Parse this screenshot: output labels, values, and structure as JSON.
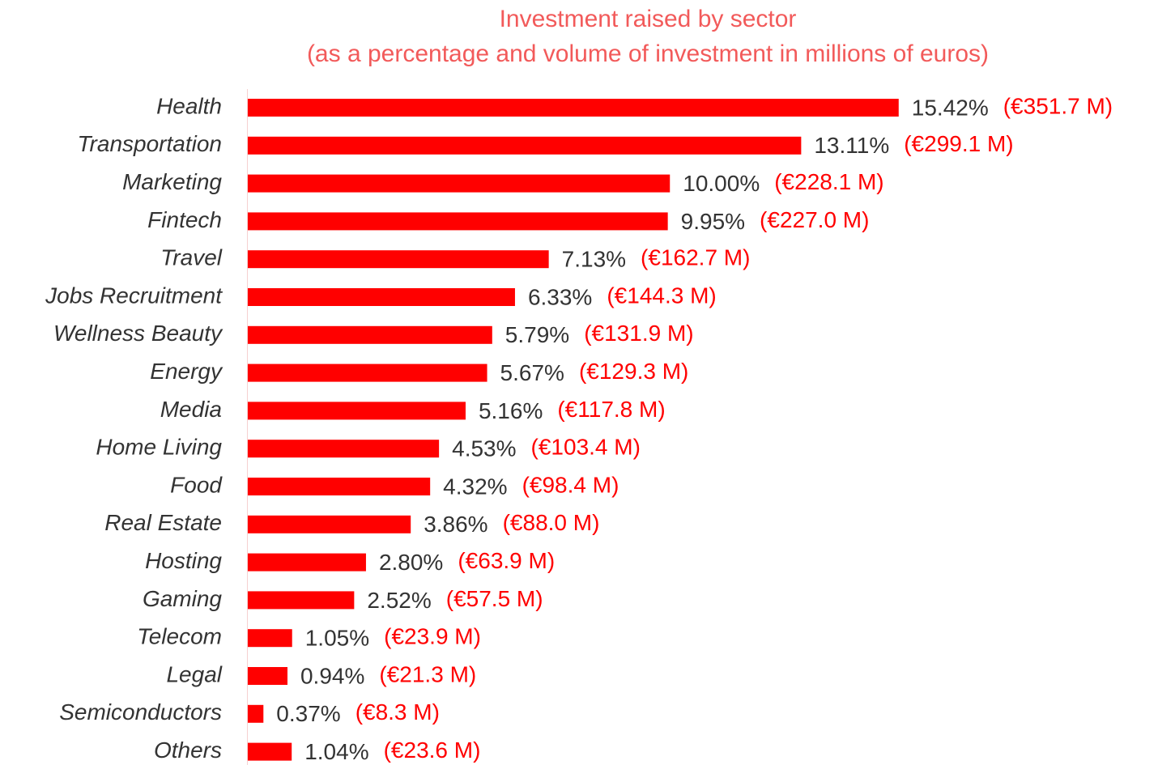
{
  "chart_data": {
    "type": "bar",
    "orientation": "horizontal",
    "title": "Investment raised by sector",
    "subtitle": "(as a percentage and volume of investment in millions of euros)",
    "categories": [
      "Health",
      "Transportation",
      "Marketing",
      "Fintech",
      "Travel",
      "Jobs Recruitment",
      "Wellness Beauty",
      "Energy",
      "Media",
      "Home Living",
      "Food",
      "Real Estate",
      "Hosting",
      "Gaming",
      "Telecom",
      "Legal",
      "Semiconductors",
      "Others"
    ],
    "values": [
      15.42,
      13.11,
      10.0,
      9.95,
      7.13,
      6.33,
      5.79,
      5.67,
      5.16,
      4.53,
      4.32,
      3.86,
      2.8,
      2.52,
      1.05,
      0.94,
      0.37,
      1.04
    ],
    "value_labels": [
      "15.42%",
      "13.11%",
      "10.00%",
      "9.95%",
      "7.13%",
      "6.33%",
      "5.79%",
      "5.67%",
      "5.16%",
      "4.53%",
      "4.32%",
      "3.86%",
      "2.80%",
      "2.52%",
      "1.05%",
      "0.94%",
      "0.37%",
      "1.04%"
    ],
    "volumes": [
      351.7,
      299.1,
      228.1,
      227.0,
      162.7,
      144.3,
      131.9,
      129.3,
      117.8,
      103.4,
      98.4,
      88.0,
      63.9,
      57.5,
      23.9,
      21.3,
      8.3,
      23.6
    ],
    "volume_labels": [
      "(€351.7 M)",
      "(€299.1 M)",
      "(€228.1 M)",
      "(€227.0 M)",
      "(€162.7 M)",
      "(€144.3 M)",
      "(€131.9 M)",
      "(€129.3 M)",
      "(€117.8 M)",
      "(€103.4 M)",
      "(€98.4 M)",
      "(€88.0 M)",
      "(€63.9 M)",
      "(€57.5 M)",
      "(€23.9 M)",
      "(€21.3 M)",
      "(€8.3 M)",
      "(€23.6 M)"
    ],
    "color": "#ff0000",
    "xlim": [
      0,
      16
    ]
  }
}
